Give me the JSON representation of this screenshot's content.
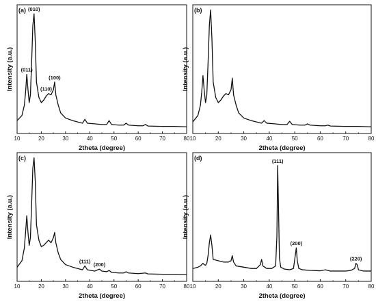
{
  "figure": {
    "panels": [
      {
        "id": "a",
        "tag": "(a)"
      },
      {
        "id": "b",
        "tag": "(b)"
      },
      {
        "id": "c",
        "tag": "(c)"
      },
      {
        "id": "d",
        "tag": "(d)"
      }
    ]
  },
  "chart_data": [
    {
      "panel": "(a)",
      "type": "line",
      "xlabel": "2theta (degree)",
      "ylabel": "Intensity (a.u.)",
      "xlim": [
        10,
        80
      ],
      "ylim": [
        0,
        100
      ],
      "xticks": [
        10,
        20,
        30,
        40,
        50,
        60,
        70,
        80
      ],
      "grid": false,
      "y_tick_labels": false,
      "series": [
        {
          "x": [
            10,
            12,
            13,
            13.5,
            14,
            14.5,
            15,
            15.5,
            16,
            16.5,
            17,
            17.5,
            18,
            19,
            20,
            21,
            22,
            23,
            24,
            25,
            25.5,
            26,
            27,
            28,
            30,
            33,
            35,
            37,
            38,
            39,
            42,
            45,
            47,
            48,
            49,
            52,
            54,
            55,
            56,
            60,
            62,
            63,
            64,
            70,
            75,
            80
          ],
          "y": [
            10,
            14,
            22,
            32,
            46,
            34,
            24,
            30,
            55,
            84,
            93,
            72,
            40,
            28,
            24,
            26,
            29,
            31,
            30,
            34,
            40,
            30,
            22,
            16,
            12,
            10,
            9,
            8,
            11,
            8,
            7.5,
            7,
            7,
            10,
            7,
            6.5,
            6.5,
            8,
            6.5,
            6,
            6,
            7,
            5.8,
            5.5,
            5.5,
            5.2
          ]
        }
      ],
      "annotations": [
        {
          "text": "(011)",
          "x": 14,
          "y": 46
        },
        {
          "text": "(010)",
          "x": 17,
          "y": 93
        },
        {
          "text": "(110)",
          "x": 22,
          "y": 31
        },
        {
          "text": "(100)",
          "x": 25.5,
          "y": 40
        }
      ]
    },
    {
      "panel": "(b)",
      "type": "line",
      "xlabel": "2theta (degree)",
      "ylabel": "Intensity (a.u.)",
      "xlim": [
        10,
        80
      ],
      "ylim": [
        0,
        100
      ],
      "xticks": [
        10,
        20,
        30,
        40,
        50,
        60,
        70,
        80
      ],
      "grid": false,
      "y_tick_labels": false,
      "series": [
        {
          "x": [
            10,
            12,
            13,
            13.5,
            14,
            14.5,
            15,
            15.5,
            16,
            16.5,
            17,
            17.5,
            18,
            19,
            20,
            21,
            22,
            23,
            24,
            25,
            25.5,
            26,
            27,
            28,
            30,
            33,
            35,
            37,
            38,
            39,
            42,
            45,
            47,
            48,
            49,
            52,
            54,
            55,
            56,
            60,
            62,
            63,
            64,
            70,
            75,
            80
          ],
          "y": [
            9,
            14,
            22,
            32,
            45,
            33,
            24,
            30,
            55,
            84,
            96,
            74,
            40,
            28,
            24,
            26,
            29,
            31,
            30,
            34,
            43,
            30,
            22,
            16,
            12,
            10,
            9,
            8,
            10,
            8,
            7.5,
            7,
            7,
            9.5,
            7,
            6.5,
            6.5,
            7.5,
            6.5,
            6,
            6,
            6.5,
            5.8,
            5.5,
            5.5,
            5.2
          ]
        }
      ],
      "annotations": []
    },
    {
      "panel": "(c)",
      "type": "line",
      "xlabel": "2theta (degree)",
      "ylabel": "Intensity (a.u.)",
      "xlim": [
        10,
        80
      ],
      "ylim": [
        0,
        100
      ],
      "xticks": [
        10,
        20,
        30,
        40,
        50,
        60,
        70,
        80
      ],
      "grid": false,
      "y_tick_labels": false,
      "series": [
        {
          "x": [
            10,
            12,
            13,
            13.5,
            14,
            14.5,
            15,
            15.5,
            16,
            16.5,
            17,
            17.5,
            18,
            19,
            20,
            21,
            22,
            23,
            24,
            25,
            25.5,
            26,
            27,
            28,
            30,
            33,
            35,
            37,
            38,
            39,
            42,
            44,
            45,
            47,
            48,
            49,
            52,
            54,
            55,
            56,
            60,
            63,
            64,
            70,
            75,
            80
          ],
          "y": [
            11,
            16,
            26,
            38,
            51,
            38,
            28,
            34,
            60,
            88,
            96,
            78,
            44,
            32,
            27,
            28,
            30,
            32,
            30,
            34,
            38,
            30,
            22,
            17,
            13,
            11,
            10,
            9,
            12,
            9,
            8,
            9.5,
            8,
            7.5,
            8.5,
            7,
            6.5,
            6.5,
            7.5,
            6.5,
            6,
            6.5,
            5.8,
            5.5,
            5.5,
            5.2
          ]
        }
      ],
      "annotations": [
        {
          "text": "(111)",
          "x": 38,
          "y": 12
        },
        {
          "text": "(200)",
          "x": 44,
          "y": 9.5
        }
      ]
    },
    {
      "panel": "(d)",
      "type": "line",
      "xlabel": "2theta (degree)",
      "ylabel": "Intensity (a.u.)",
      "xlim": [
        10,
        80
      ],
      "ylim": [
        0,
        100
      ],
      "xticks": [
        10,
        20,
        30,
        40,
        50,
        60,
        70,
        80
      ],
      "grid": false,
      "y_tick_labels": false,
      "series": [
        {
          "x": [
            10,
            12,
            13,
            14,
            14.5,
            15,
            15.5,
            16,
            16.5,
            17,
            17.5,
            18,
            20,
            22,
            24,
            25,
            25.5,
            26,
            27,
            30,
            33,
            35,
            36.5,
            37,
            37.5,
            39,
            41,
            42.5,
            43,
            43.3,
            43.6,
            44,
            44.5,
            46,
            48,
            49.5,
            50.2,
            50.6,
            51,
            51.6,
            53,
            56,
            60,
            62,
            64,
            70,
            72,
            73.5,
            74,
            74.5,
            75,
            77,
            80
          ],
          "y": [
            10,
            11,
            12,
            14,
            13,
            12.5,
            14,
            20,
            30,
            36,
            28,
            17,
            16,
            15,
            15,
            16,
            20,
            15,
            12,
            11,
            10,
            10,
            13,
            17,
            12,
            10,
            10,
            12,
            35,
            90,
            60,
            18,
            11,
            9.5,
            9,
            10,
            20,
            26,
            16,
            10,
            9,
            8.5,
            8.2,
            9,
            8,
            8,
            8.5,
            10,
            14,
            13,
            9,
            8,
            8
          ]
        }
      ],
      "annotations": [
        {
          "text": "(111)",
          "x": 43.3,
          "y": 90
        },
        {
          "text": "(200)",
          "x": 50.6,
          "y": 26
        },
        {
          "text": "(220)",
          "x": 74,
          "y": 14
        }
      ]
    }
  ]
}
